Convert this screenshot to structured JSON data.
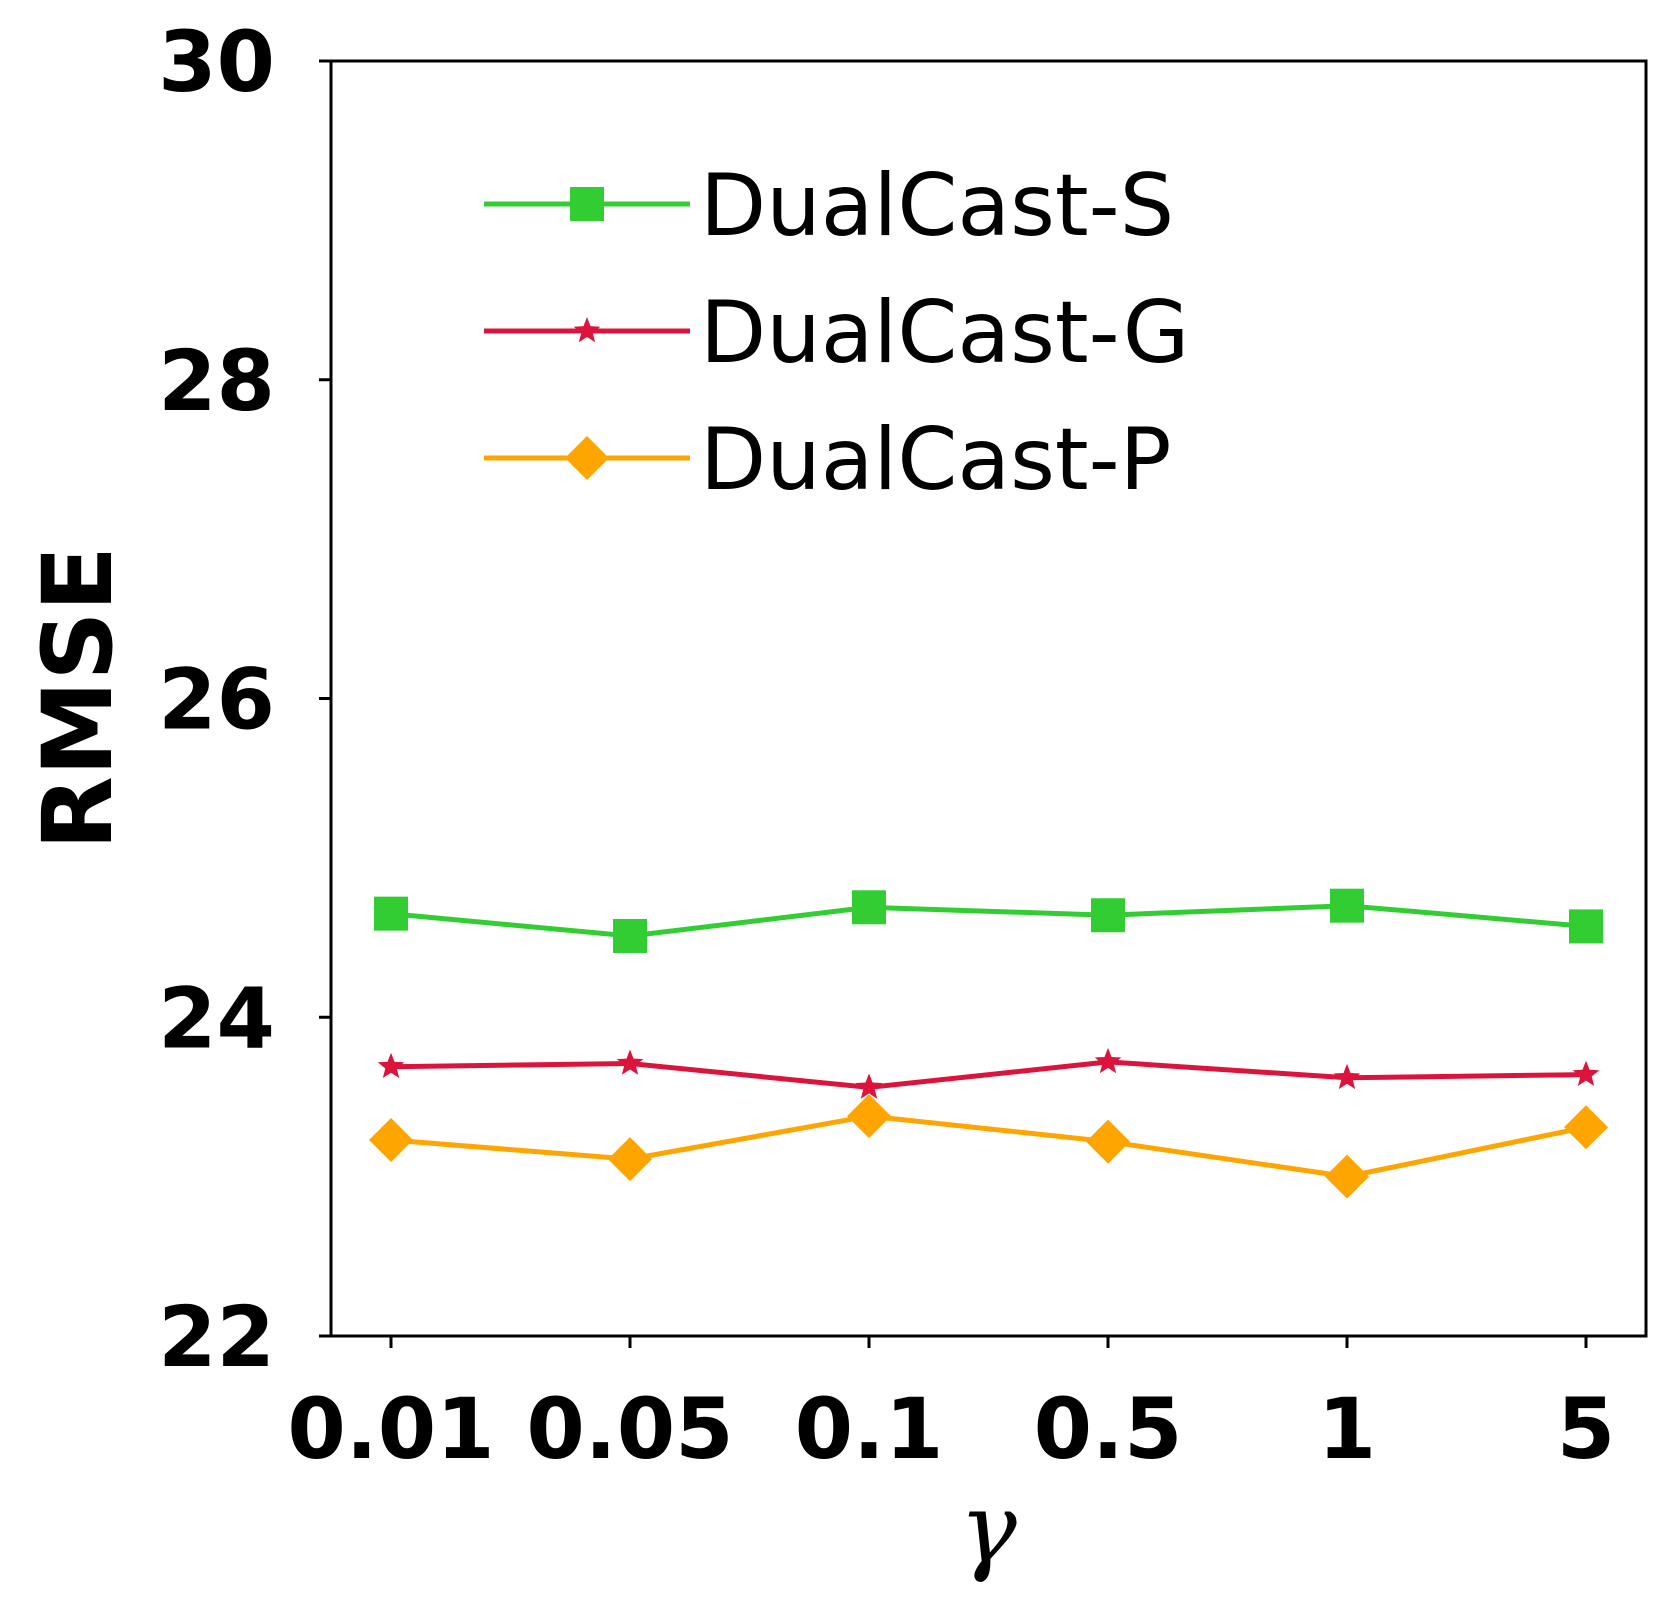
{
  "chart_data": {
    "type": "line",
    "categories": [
      "0.01",
      "0.05",
      "0.1",
      "0.5",
      "1",
      "5"
    ],
    "xlabel": "γ",
    "ylabel": "RMSE",
    "ylim": [
      22,
      30
    ],
    "yticks": [
      "22",
      "24",
      "26",
      "28",
      "30"
    ],
    "grid": false,
    "legend_position": "top-center",
    "series": [
      {
        "name": "DualCast-S",
        "color": "#32cd32",
        "marker": "square",
        "values": [
          24.65,
          24.51,
          24.69,
          24.64,
          24.7,
          24.57
        ]
      },
      {
        "name": "DualCast-G",
        "color": "#dc143c",
        "marker": "star",
        "values": [
          23.69,
          23.71,
          23.56,
          23.72,
          23.62,
          23.64
        ]
      },
      {
        "name": "DualCast-P",
        "color": "#ffa500",
        "marker": "diamond",
        "values": [
          23.23,
          23.11,
          23.38,
          23.22,
          23.0,
          23.31
        ]
      }
    ]
  }
}
